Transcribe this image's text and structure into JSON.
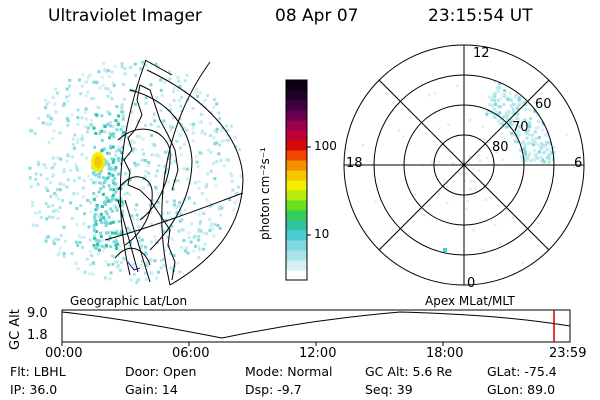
{
  "header": {
    "title": "Ultraviolet Imager",
    "date": "08 Apr 07",
    "time": "23:15:54 UT"
  },
  "colorbar": {
    "label": "photon cm⁻²s⁻¹",
    "ticks": [
      "100",
      "10"
    ],
    "colors": [
      "#ffffff",
      "#d6f0f2",
      "#a9e4ea",
      "#7fd8e0",
      "#4ccdd6",
      "#2ec6a0",
      "#32d05a",
      "#66e020",
      "#b8ec10",
      "#f2f000",
      "#f7c400",
      "#f58e00",
      "#ec4800",
      "#d70a0a",
      "#c00036",
      "#9a004c",
      "#6a0054",
      "#3e0040",
      "#1e0028",
      "#0a0010"
    ]
  },
  "geo_panel": {
    "label": "Geographic Lat/Lon"
  },
  "polar_panel": {
    "label": "Apex MLat/MLT",
    "mlt_labels": {
      "top": "12",
      "left": "18",
      "right": "6",
      "bottom": "0"
    },
    "lat_labels": [
      "60",
      "70",
      "80"
    ]
  },
  "altitude_plot": {
    "axis_label": "GC Alt",
    "y_ticks": [
      "9.0",
      "1.8"
    ],
    "x_ticks": [
      "00:00",
      "06:00",
      "12:00",
      "18:00",
      "23:59"
    ],
    "current_time_marker_color": "#d00000"
  },
  "footer": {
    "flt": "Flt: LBHL",
    "ip": "IP: 36.0",
    "door": "Door: Open",
    "gain": "Gain: 14",
    "mode": "Mode: Normal",
    "dsp": "Dsp:   -9.7",
    "gc_alt": "GC Alt: 5.6 Re",
    "seq": "Seq: 39",
    "glat": "GLat:  -75.4",
    "glon": "GLon:  89.0"
  }
}
